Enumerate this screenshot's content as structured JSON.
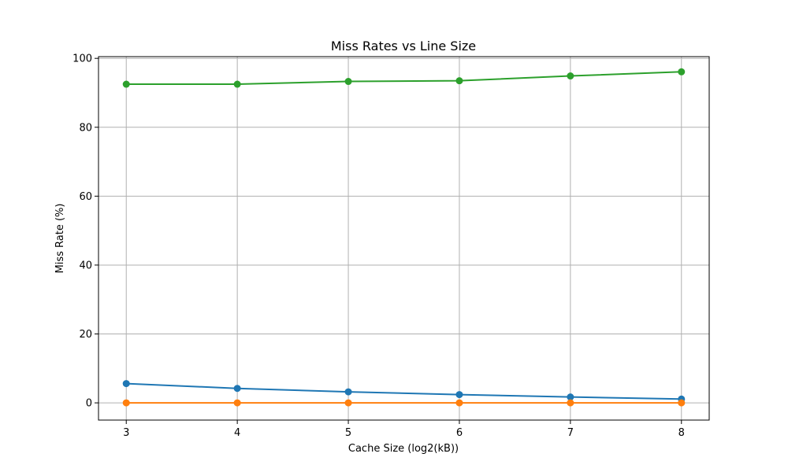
{
  "chart_data": {
    "type": "line",
    "title": "Miss Rates vs Line Size",
    "xlabel": "Cache Size (log2(kB))",
    "ylabel": "Miss Rate (%)",
    "x": [
      3,
      4,
      5,
      6,
      7,
      8
    ],
    "xlim": [
      2.75,
      8.25
    ],
    "ylim": [
      -5,
      100.5
    ],
    "xticks": [
      "3",
      "4",
      "5",
      "6",
      "7",
      "8"
    ],
    "yticks": [
      "0",
      "20",
      "40",
      "60",
      "80",
      "100"
    ],
    "grid": true,
    "series": [
      {
        "color": "#1f77b4",
        "marker": "circle",
        "values": [
          5.6,
          4.2,
          3.2,
          2.4,
          1.7,
          1.1
        ]
      },
      {
        "color": "#ff7f0e",
        "marker": "circle",
        "values": [
          0.0,
          0.0,
          0.0,
          0.0,
          0.0,
          0.0
        ]
      },
      {
        "color": "#2ca02c",
        "marker": "circle",
        "values": [
          92.5,
          92.5,
          93.3,
          93.5,
          94.9,
          96.1
        ]
      }
    ]
  }
}
